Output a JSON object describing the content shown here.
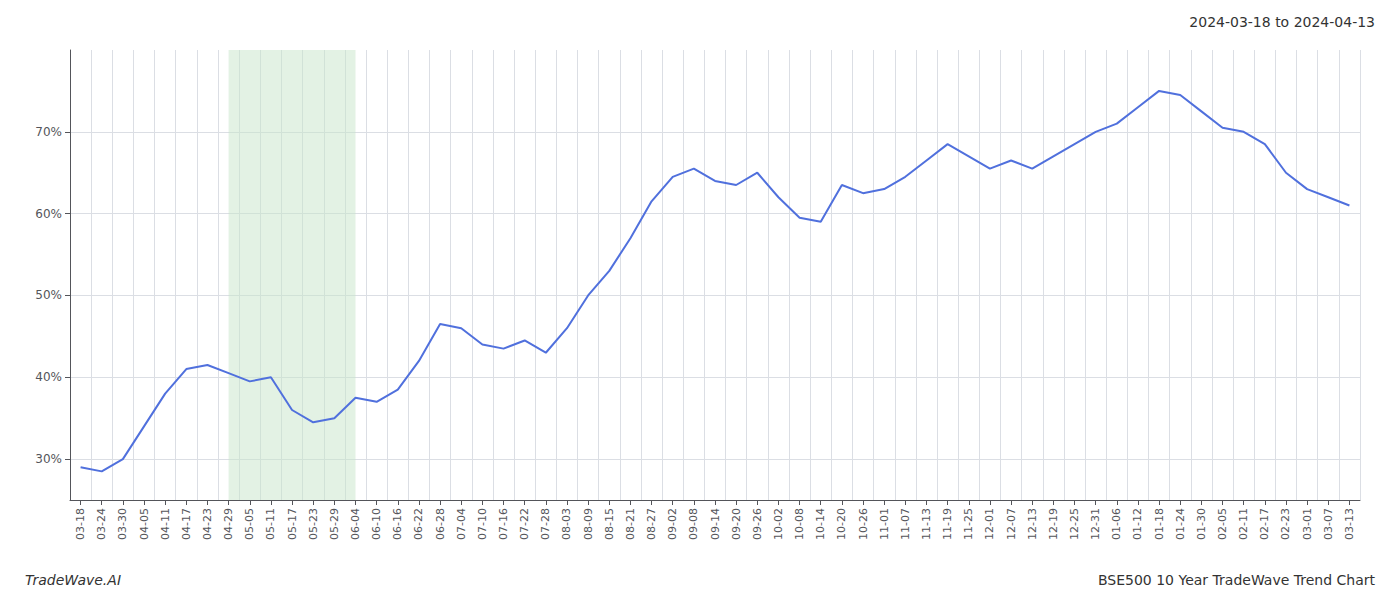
{
  "chart_data": {
    "type": "line",
    "title": "2024-03-18 to 2024-04-13",
    "annotations": [
      "TradeWave.AI",
      "BSE500 10 Year TradeWave Trend Chart"
    ],
    "categories": [
      "03-18",
      "03-24",
      "03-30",
      "04-05",
      "04-11",
      "04-17",
      "04-23",
      "04-29",
      "05-05",
      "05-11",
      "05-17",
      "05-23",
      "05-29",
      "06-04",
      "06-10",
      "06-16",
      "06-22",
      "06-28",
      "07-04",
      "07-10",
      "07-16",
      "07-22",
      "07-28",
      "08-03",
      "08-09",
      "08-15",
      "08-21",
      "08-27",
      "09-02",
      "09-08",
      "09-14",
      "09-20",
      "09-26",
      "10-02",
      "10-08",
      "10-14",
      "10-20",
      "10-26",
      "11-01",
      "11-07",
      "11-13",
      "11-19",
      "11-25",
      "12-01",
      "12-07",
      "12-13",
      "12-19",
      "12-25",
      "12-31",
      "01-06",
      "01-12",
      "01-18",
      "01-24",
      "01-30",
      "02-05",
      "02-11",
      "02-17",
      "02-23",
      "03-01",
      "03-07",
      "03-13"
    ],
    "values": [
      29.0,
      28.5,
      30.0,
      34.0,
      38.0,
      41.0,
      41.5,
      40.5,
      39.5,
      40.0,
      36.0,
      34.5,
      35.0,
      37.5,
      37.0,
      38.5,
      42.0,
      46.5,
      46.0,
      44.0,
      43.5,
      44.5,
      43.0,
      46.0,
      50.0,
      53.0,
      57.0,
      61.5,
      64.5,
      65.5,
      64.0,
      63.5,
      65.0,
      62.0,
      59.5,
      59.0,
      63.5,
      62.5,
      63.0,
      64.5,
      66.5,
      68.5,
      67.0,
      65.5,
      66.5,
      65.5,
      67.0,
      68.5,
      70.0,
      71.0,
      73.0,
      75.0,
      74.5,
      72.5,
      70.5,
      70.0,
      68.5,
      65.0,
      63.0,
      62.0,
      61.0
    ],
    "ylim": [
      25,
      80
    ],
    "yticks": [
      {
        "value": 30,
        "label": "30%"
      },
      {
        "value": 40,
        "label": "40%"
      },
      {
        "value": 50,
        "label": "50%"
      },
      {
        "value": 60,
        "label": "60%"
      },
      {
        "value": 70,
        "label": "70%"
      }
    ],
    "grid": true,
    "spans": [
      {
        "start": "04-29",
        "end": "06-04",
        "color": "#c8e6c9"
      }
    ]
  }
}
